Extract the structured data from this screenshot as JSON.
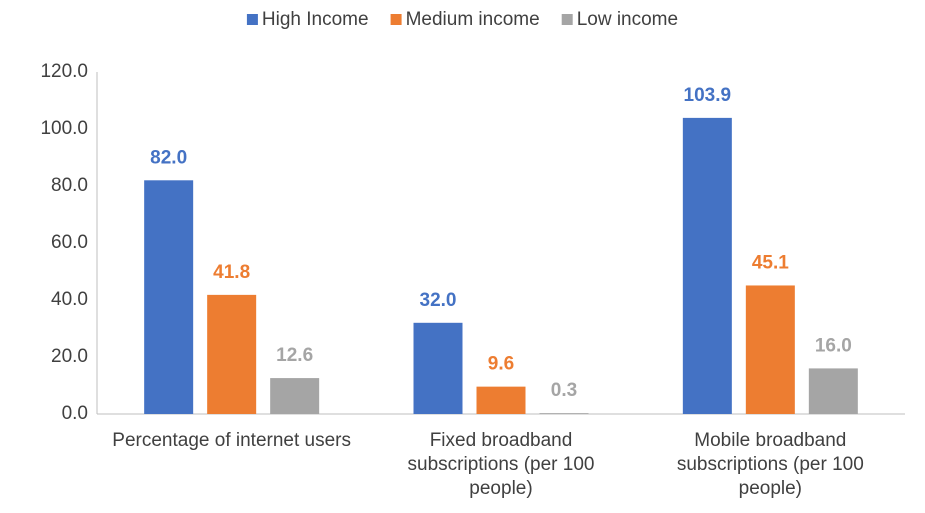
{
  "chart_data": {
    "type": "bar",
    "categories": [
      "Percentage of internet users",
      "Fixed broadband subscriptions (per 100 people)",
      "Mobile broadband subscriptions (per 100 people)"
    ],
    "series": [
      {
        "name": "High Income",
        "color": "#4472c4",
        "values": [
          82.0,
          32.0,
          103.9
        ],
        "value_labels": [
          "82.0",
          "32.0",
          "103.9"
        ]
      },
      {
        "name": "Medium income",
        "color": "#ed7d31",
        "values": [
          41.8,
          9.6,
          45.1
        ],
        "value_labels": [
          "41.8",
          "9.6",
          "45.1"
        ]
      },
      {
        "name": "Low income",
        "color": "#a5a5a5",
        "values": [
          12.6,
          0.3,
          16.0
        ],
        "value_labels": [
          "12.6",
          "0.3",
          "16.0"
        ]
      }
    ],
    "ylim": [
      0,
      120
    ],
    "yticks": [
      {
        "value": 0,
        "label": "0.0"
      },
      {
        "value": 20,
        "label": "20.0"
      },
      {
        "value": 40,
        "label": "40.0"
      },
      {
        "value": 60,
        "label": "60.0"
      },
      {
        "value": 80,
        "label": "80.0"
      },
      {
        "value": 100,
        "label": "100.0"
      },
      {
        "value": 120,
        "label": "120.0"
      }
    ],
    "grid": false,
    "legend": "top"
  }
}
